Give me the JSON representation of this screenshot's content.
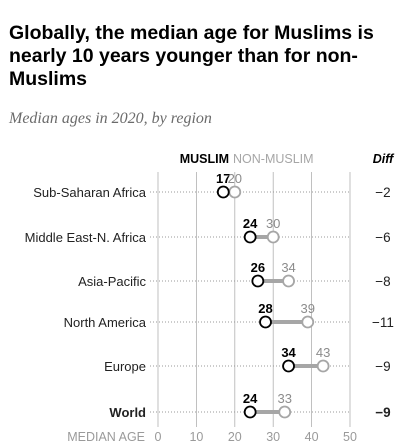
{
  "title": "Globally, the median age for Muslims is nearly 10 years younger than for non-Muslims",
  "subtitle": "Median ages in 2020, by region",
  "legend": {
    "muslim": "MUSLIM",
    "non_muslim": "NON-MUSLIM",
    "diff": "Diff"
  },
  "colors": {
    "muslim": "#000000",
    "non_muslim": "#a6a6a6",
    "connector": "#a6a6a6",
    "grid": "#b0b0b0"
  },
  "chart_data": {
    "type": "scatter",
    "title": "Globally, the median age for Muslims is nearly 10 years younger than for non-Muslims",
    "subtitle": "Median ages in 2020, by region",
    "xlabel": "MEDIAN AGE",
    "xlim": [
      0,
      50
    ],
    "xticks": [
      "0",
      "10",
      "20",
      "30",
      "40",
      "50"
    ],
    "categories": [
      "Sub-Saharan Africa",
      "Middle East-N. Africa",
      "Asia-Pacific",
      "North America",
      "Europe",
      "World"
    ],
    "series": [
      {
        "name": "MUSLIM",
        "values": [
          17,
          24,
          26,
          28,
          34,
          24
        ]
      },
      {
        "name": "NON-MUSLIM",
        "values": [
          20,
          30,
          34,
          39,
          43,
          33
        ]
      }
    ],
    "diff_header": "Diff",
    "diff_labels": [
      "−2",
      "−6",
      "−8",
      "−11",
      "−9",
      "−9"
    ],
    "bold_categories": [
      "World"
    ]
  }
}
